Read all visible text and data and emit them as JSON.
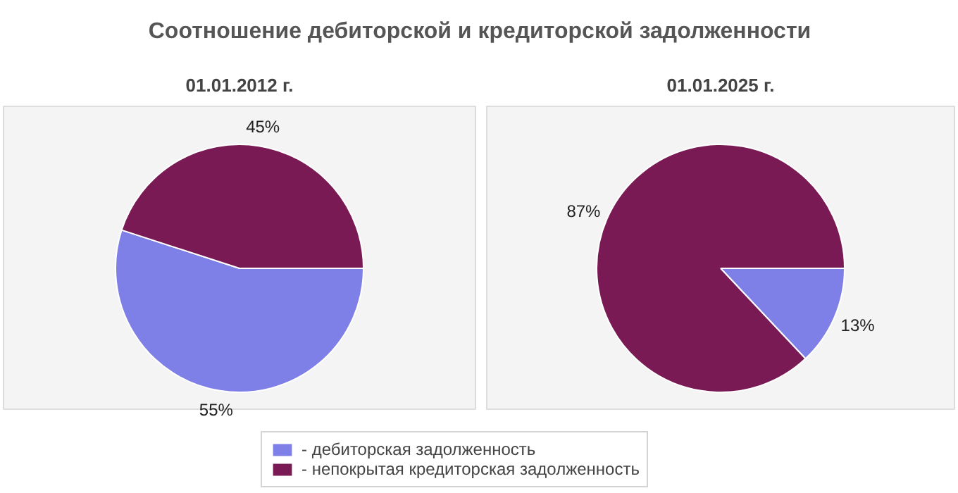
{
  "chart_data": [
    {
      "type": "pie",
      "title": "Соотношение дебиторской и кредиторской задолженности",
      "subtitle": "01.01.2012 г.",
      "categories": [
        "- дебиторская задолженность",
        "- непокрытая кредиторская задолженность"
      ],
      "values": [
        55,
        45
      ],
      "colors": [
        "#7f7fe8",
        "#7a1a55"
      ],
      "value_labels": [
        "55%",
        "45%"
      ],
      "legend": "bottom"
    },
    {
      "type": "pie",
      "subtitle": "01.01.2025 г.",
      "categories": [
        null,
        null
      ],
      "values": [
        13,
        87
      ],
      "colors": [
        "#7f7fe8",
        "#7a1a55"
      ],
      "value_labels": [
        "13%",
        "87%"
      ]
    }
  ]
}
